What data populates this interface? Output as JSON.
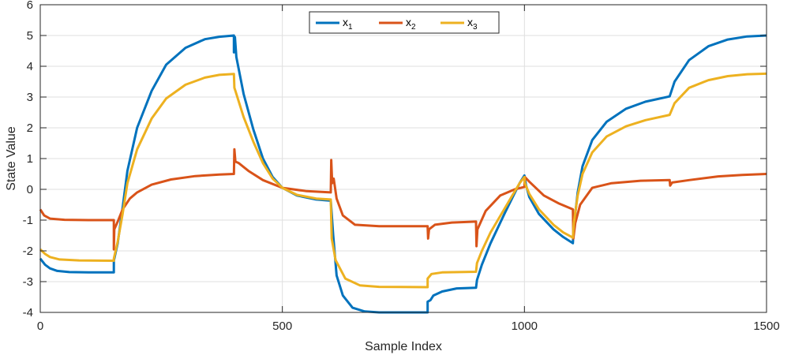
{
  "chart_data": {
    "type": "line",
    "xlabel": "Sample Index",
    "ylabel": "State Value",
    "xlim": [
      0,
      1500
    ],
    "ylim": [
      -4,
      6
    ],
    "xticks": [
      0,
      500,
      1000,
      1500
    ],
    "yticks": [
      -4,
      -3,
      -2,
      -1,
      0,
      1,
      2,
      3,
      4,
      5,
      6
    ],
    "xtick_labels": [
      "0",
      "500",
      "1000",
      "1500"
    ],
    "ytick_labels": [
      "-4",
      "-3",
      "-2",
      "-1",
      "0",
      "1",
      "2",
      "3",
      "4",
      "5",
      "6"
    ],
    "grid": true,
    "legend_position": "top-center",
    "series": [
      {
        "name": "x1",
        "legend_base": "x",
        "legend_sub": "1",
        "color": "#0072BD",
        "points": [
          [
            0,
            -2.25
          ],
          [
            10,
            -2.45
          ],
          [
            20,
            -2.57
          ],
          [
            35,
            -2.65
          ],
          [
            60,
            -2.69
          ],
          [
            100,
            -2.7
          ],
          [
            152,
            -2.7
          ],
          [
            152,
            -2.32
          ],
          [
            160,
            -1.75
          ],
          [
            170,
            -0.6
          ],
          [
            180,
            0.6
          ],
          [
            200,
            2.0
          ],
          [
            230,
            3.2
          ],
          [
            260,
            4.05
          ],
          [
            300,
            4.6
          ],
          [
            340,
            4.88
          ],
          [
            370,
            4.96
          ],
          [
            400,
            5.0
          ],
          [
            400,
            4.45
          ],
          [
            402,
            4.95
          ],
          [
            405,
            4.3
          ],
          [
            420,
            3.1
          ],
          [
            440,
            1.95
          ],
          [
            460,
            1.0
          ],
          [
            480,
            0.4
          ],
          [
            500,
            0.05
          ],
          [
            530,
            -0.2
          ],
          [
            570,
            -0.33
          ],
          [
            600,
            -0.37
          ],
          [
            605,
            -1.5
          ],
          [
            612,
            -2.8
          ],
          [
            625,
            -3.45
          ],
          [
            645,
            -3.85
          ],
          [
            670,
            -3.97
          ],
          [
            700,
            -4.0
          ],
          [
            800,
            -4.0
          ],
          [
            800,
            -3.65
          ],
          [
            806,
            -3.6
          ],
          [
            812,
            -3.45
          ],
          [
            830,
            -3.32
          ],
          [
            860,
            -3.22
          ],
          [
            900,
            -3.2
          ],
          [
            902,
            -2.95
          ],
          [
            912,
            -2.45
          ],
          [
            930,
            -1.75
          ],
          [
            960,
            -0.75
          ],
          [
            990,
            0.2
          ],
          [
            1000,
            0.45
          ],
          [
            1003,
            0.15
          ],
          [
            1010,
            -0.25
          ],
          [
            1030,
            -0.8
          ],
          [
            1060,
            -1.3
          ],
          [
            1080,
            -1.55
          ],
          [
            1100,
            -1.75
          ],
          [
            1102,
            -1.2
          ],
          [
            1110,
            -0.1
          ],
          [
            1120,
            0.75
          ],
          [
            1140,
            1.6
          ],
          [
            1170,
            2.2
          ],
          [
            1210,
            2.62
          ],
          [
            1250,
            2.85
          ],
          [
            1300,
            3.02
          ],
          [
            1310,
            3.5
          ],
          [
            1340,
            4.2
          ],
          [
            1380,
            4.65
          ],
          [
            1420,
            4.87
          ],
          [
            1460,
            4.97
          ],
          [
            1500,
            5.0
          ]
        ]
      },
      {
        "name": "x2",
        "legend_base": "x",
        "legend_sub": "2",
        "color": "#D95319",
        "points": [
          [
            0,
            -0.65
          ],
          [
            8,
            -0.85
          ],
          [
            20,
            -0.95
          ],
          [
            50,
            -0.99
          ],
          [
            100,
            -1.0
          ],
          [
            152,
            -1.0
          ],
          [
            152,
            -1.95
          ],
          [
            153,
            -1.3
          ],
          [
            160,
            -1.05
          ],
          [
            170,
            -0.65
          ],
          [
            185,
            -0.3
          ],
          [
            200,
            -0.1
          ],
          [
            230,
            0.15
          ],
          [
            270,
            0.32
          ],
          [
            320,
            0.43
          ],
          [
            370,
            0.48
          ],
          [
            400,
            0.5
          ],
          [
            401,
            1.3
          ],
          [
            403,
            0.9
          ],
          [
            410,
            0.85
          ],
          [
            430,
            0.6
          ],
          [
            460,
            0.3
          ],
          [
            500,
            0.05
          ],
          [
            550,
            -0.06
          ],
          [
            600,
            -0.1
          ],
          [
            601,
            0.95
          ],
          [
            603,
            0.2
          ],
          [
            606,
            0.35
          ],
          [
            612,
            -0.3
          ],
          [
            625,
            -0.85
          ],
          [
            650,
            -1.15
          ],
          [
            700,
            -1.2
          ],
          [
            800,
            -1.2
          ],
          [
            801,
            -1.6
          ],
          [
            803,
            -1.3
          ],
          [
            815,
            -1.15
          ],
          [
            850,
            -1.08
          ],
          [
            900,
            -1.05
          ],
          [
            901,
            -1.85
          ],
          [
            903,
            -1.3
          ],
          [
            920,
            -0.7
          ],
          [
            950,
            -0.2
          ],
          [
            980,
            0.0
          ],
          [
            1000,
            0.08
          ],
          [
            1001,
            0.4
          ],
          [
            1010,
            0.25
          ],
          [
            1040,
            -0.2
          ],
          [
            1070,
            -0.45
          ],
          [
            1100,
            -0.65
          ],
          [
            1101,
            -1.6
          ],
          [
            1105,
            -1.1
          ],
          [
            1115,
            -0.5
          ],
          [
            1140,
            0.05
          ],
          [
            1180,
            0.2
          ],
          [
            1240,
            0.28
          ],
          [
            1300,
            0.3
          ],
          [
            1301,
            0.12
          ],
          [
            1305,
            0.22
          ],
          [
            1340,
            0.3
          ],
          [
            1400,
            0.42
          ],
          [
            1450,
            0.47
          ],
          [
            1500,
            0.5
          ]
        ]
      },
      {
        "name": "x3",
        "legend_base": "x",
        "legend_sub": "3",
        "color": "#EDB120",
        "points": [
          [
            0,
            -1.95
          ],
          [
            10,
            -2.1
          ],
          [
            20,
            -2.2
          ],
          [
            40,
            -2.28
          ],
          [
            80,
            -2.31
          ],
          [
            152,
            -2.32
          ],
          [
            152,
            -2.25
          ],
          [
            160,
            -1.7
          ],
          [
            170,
            -0.8
          ],
          [
            180,
            0.2
          ],
          [
            200,
            1.3
          ],
          [
            230,
            2.3
          ],
          [
            260,
            2.95
          ],
          [
            300,
            3.4
          ],
          [
            340,
            3.63
          ],
          [
            370,
            3.72
          ],
          [
            400,
            3.75
          ],
          [
            401,
            3.3
          ],
          [
            403,
            3.2
          ],
          [
            420,
            2.35
          ],
          [
            440,
            1.55
          ],
          [
            460,
            0.85
          ],
          [
            480,
            0.35
          ],
          [
            500,
            0.05
          ],
          [
            530,
            -0.18
          ],
          [
            570,
            -0.3
          ],
          [
            600,
            -0.33
          ],
          [
            602,
            -1.6
          ],
          [
            610,
            -2.3
          ],
          [
            630,
            -2.9
          ],
          [
            660,
            -3.12
          ],
          [
            700,
            -3.17
          ],
          [
            800,
            -3.18
          ],
          [
            800,
            -2.9
          ],
          [
            808,
            -2.75
          ],
          [
            830,
            -2.7
          ],
          [
            900,
            -2.68
          ],
          [
            902,
            -2.4
          ],
          [
            912,
            -2.0
          ],
          [
            930,
            -1.4
          ],
          [
            960,
            -0.6
          ],
          [
            990,
            0.2
          ],
          [
            1000,
            0.4
          ],
          [
            1001,
            0.2
          ],
          [
            1010,
            -0.15
          ],
          [
            1030,
            -0.65
          ],
          [
            1060,
            -1.15
          ],
          [
            1080,
            -1.4
          ],
          [
            1100,
            -1.57
          ],
          [
            1102,
            -1.1
          ],
          [
            1110,
            -0.2
          ],
          [
            1120,
            0.5
          ],
          [
            1140,
            1.2
          ],
          [
            1170,
            1.72
          ],
          [
            1210,
            2.05
          ],
          [
            1250,
            2.25
          ],
          [
            1300,
            2.42
          ],
          [
            1310,
            2.8
          ],
          [
            1340,
            3.3
          ],
          [
            1380,
            3.55
          ],
          [
            1420,
            3.68
          ],
          [
            1460,
            3.74
          ],
          [
            1500,
            3.76
          ]
        ]
      }
    ]
  }
}
